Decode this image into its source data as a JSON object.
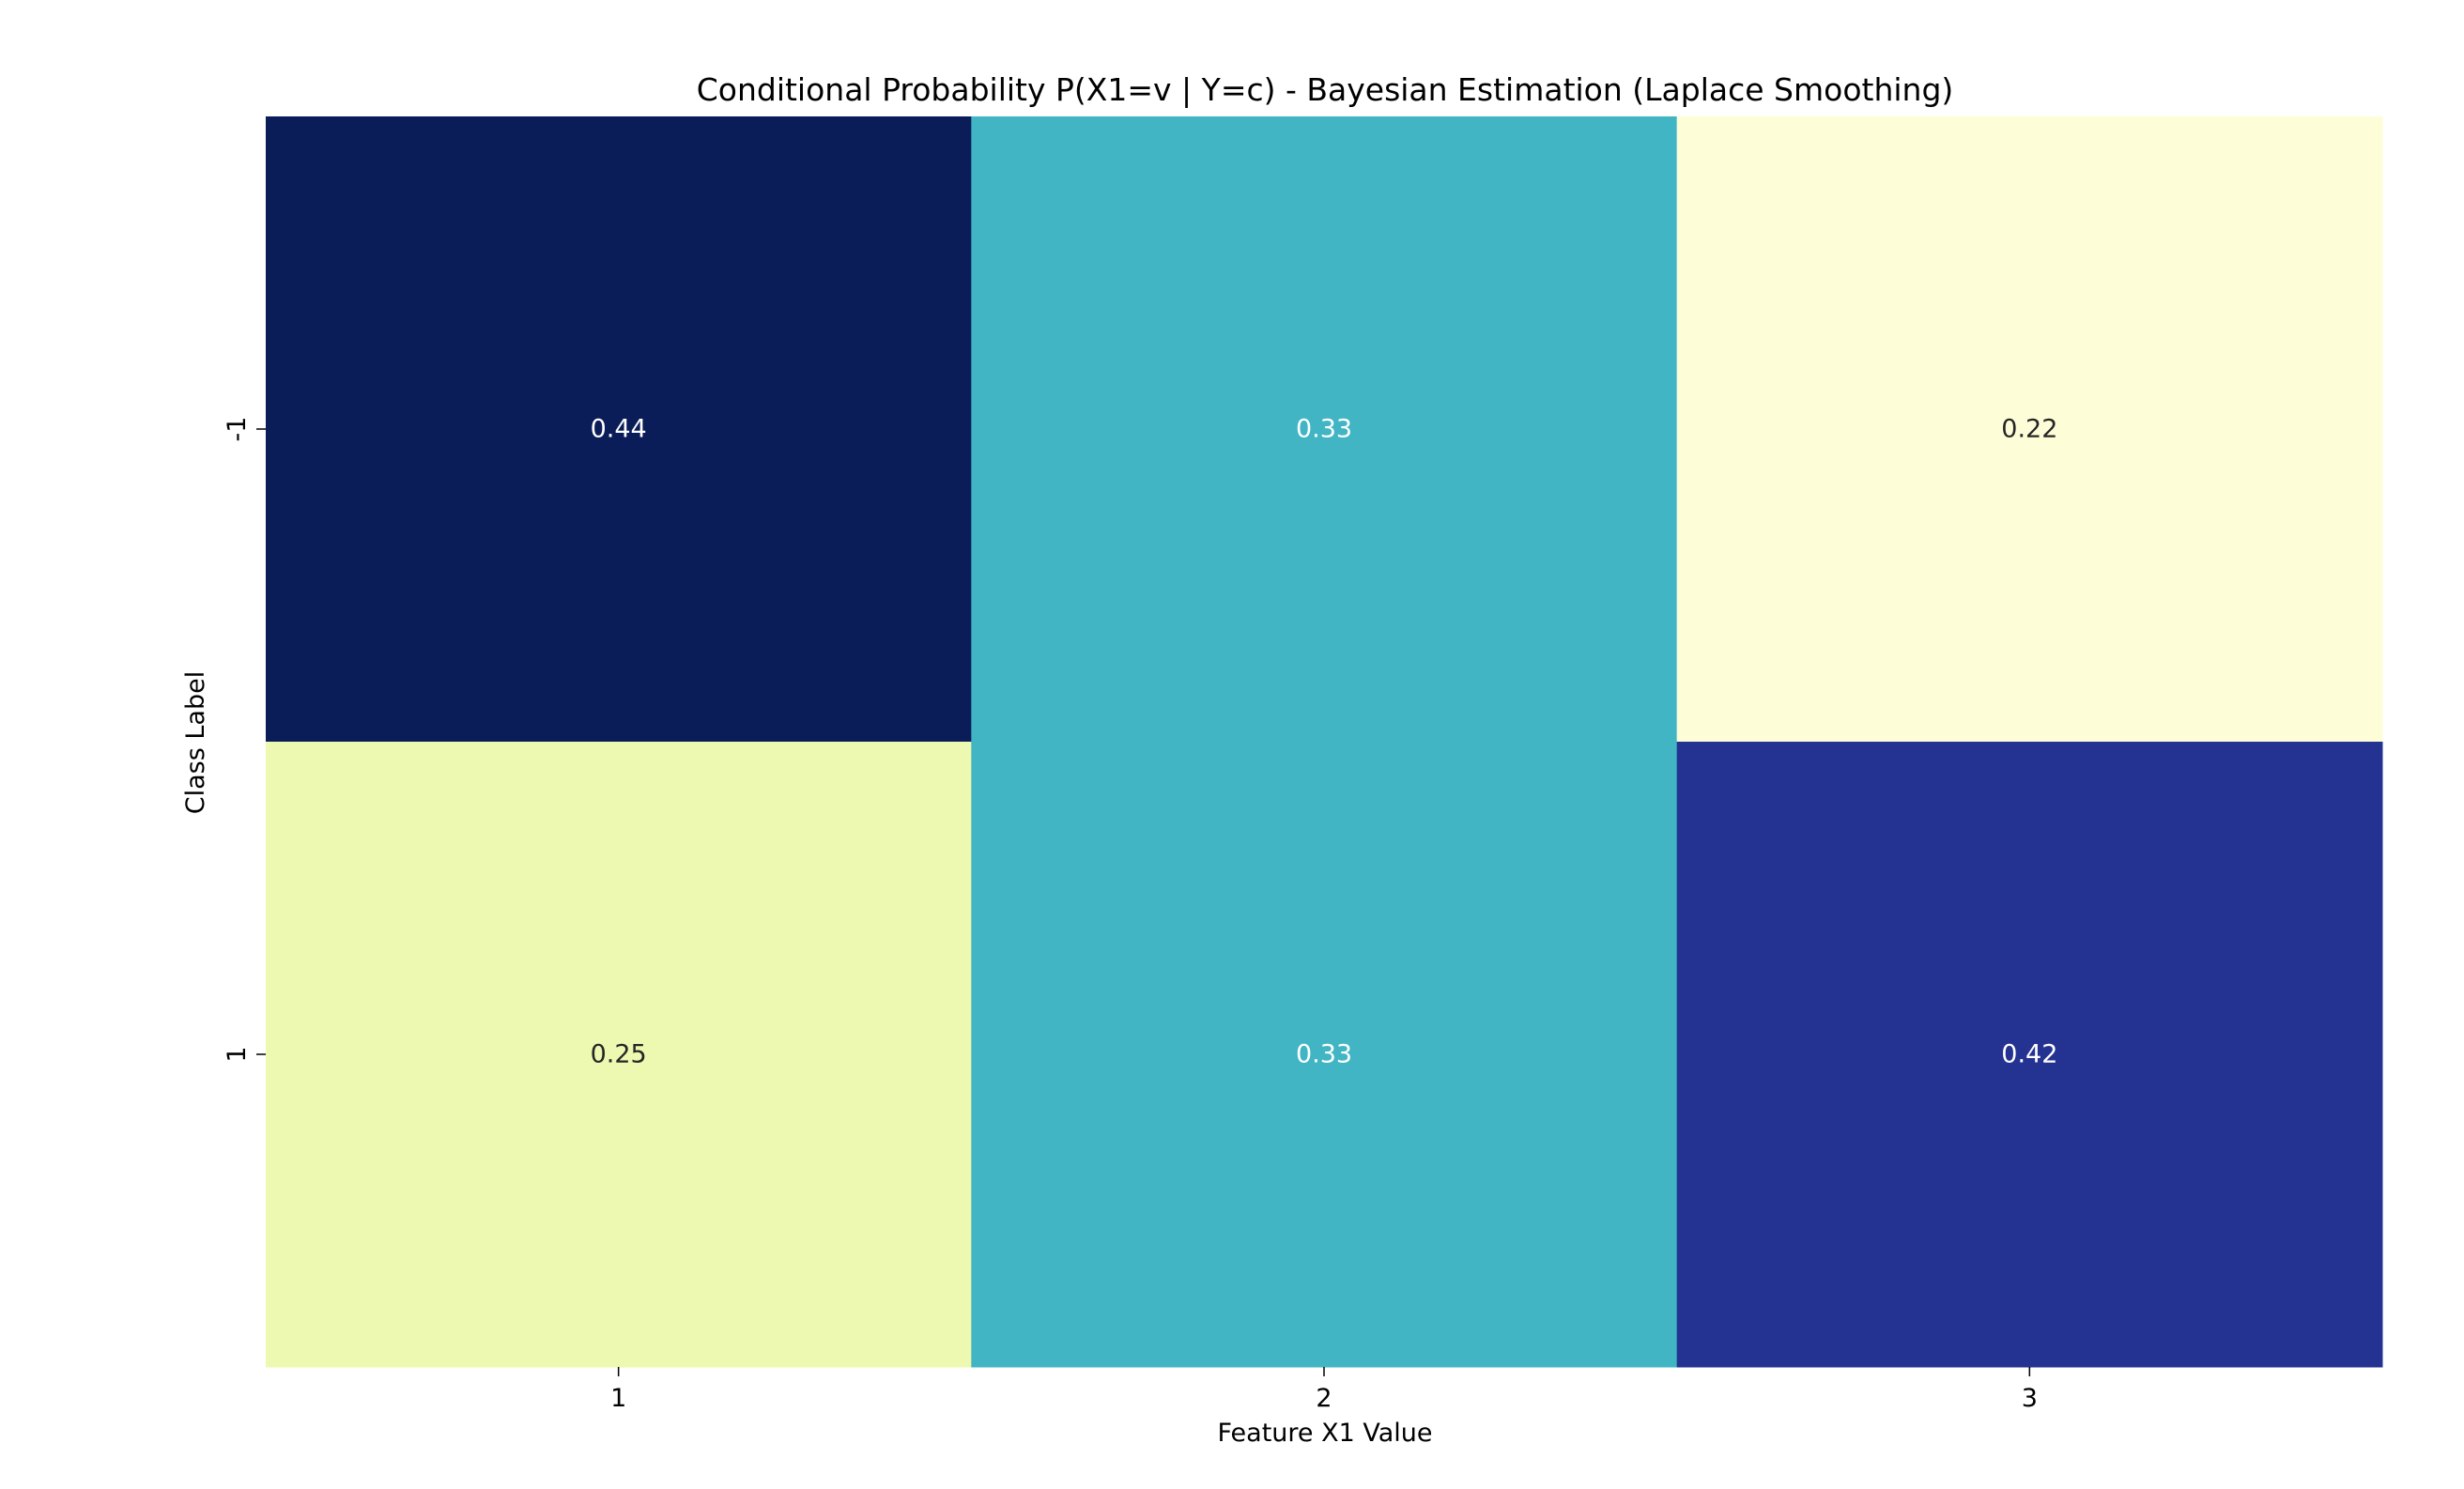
{
  "chart_data": {
    "type": "heatmap",
    "title": "Conditional Probability P(X1=v | Y=c) - Bayesian Estimation (Laplace Smoothing)",
    "xlabel": "Feature X1 Value",
    "ylabel": "Class Label",
    "x_categories": [
      "1",
      "2",
      "3"
    ],
    "y_categories": [
      "-1",
      "1"
    ],
    "values": [
      [
        0.44,
        0.33,
        0.22
      ],
      [
        0.25,
        0.33,
        0.42
      ]
    ],
    "value_labels": [
      [
        "0.44",
        "0.33",
        "0.22"
      ],
      [
        "0.25",
        "0.33",
        "0.42"
      ]
    ],
    "cell_colors": [
      [
        "#0a1d58",
        "#41b5c4",
        "#fdfed8"
      ],
      [
        "#edf8b0",
        "#41b5c4",
        "#243392"
      ]
    ],
    "annotation_colors": [
      [
        "#ffffff",
        "#ffffff",
        "#262626"
      ],
      [
        "#262626",
        "#ffffff",
        "#ffffff"
      ]
    ],
    "colormap": "YlGnBu",
    "colorbar": false,
    "grid": false
  }
}
